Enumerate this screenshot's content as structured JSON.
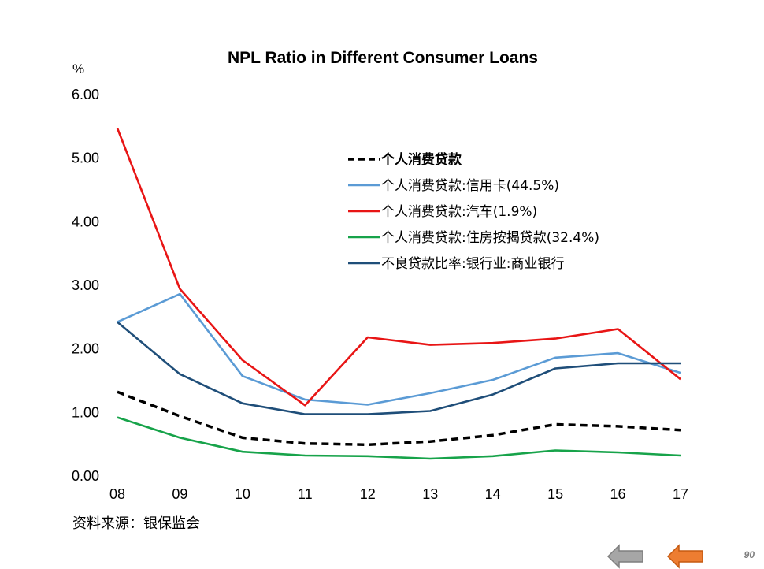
{
  "chart_data": {
    "type": "line",
    "title": "NPL Ratio in Different Consumer Loans",
    "ylabel": "%",
    "ylim": [
      0,
      6
    ],
    "yticks": [
      "0.00",
      "1.00",
      "2.00",
      "3.00",
      "4.00",
      "5.00",
      "6.00"
    ],
    "categories": [
      "08",
      "09",
      "10",
      "11",
      "12",
      "13",
      "14",
      "15",
      "16",
      "17"
    ],
    "grid": false,
    "legend_position": "top-right",
    "series": [
      {
        "name": "个人消费贷款",
        "color": "#000000",
        "dash": true,
        "bold": true,
        "values": [
          1.31,
          0.93,
          0.59,
          0.5,
          0.48,
          0.53,
          0.63,
          0.8,
          0.77,
          0.71
        ]
      },
      {
        "name": "个人消费贷款:信用卡(44.5%)",
        "color": "#5B9BD5",
        "dash": false,
        "bold": false,
        "values": [
          2.41,
          2.85,
          1.56,
          1.19,
          1.11,
          1.29,
          1.5,
          1.85,
          1.92,
          1.61
        ]
      },
      {
        "name": "个人消费贷款:汽车(1.9%)",
        "color": "#E81515",
        "dash": false,
        "bold": false,
        "values": [
          5.46,
          2.93,
          1.81,
          1.1,
          2.17,
          2.05,
          2.08,
          2.15,
          2.3,
          1.51
        ]
      },
      {
        "name": "个人消费贷款:住房按揭贷款(32.4%)",
        "color": "#17A34A",
        "dash": false,
        "bold": false,
        "values": [
          0.91,
          0.59,
          0.37,
          0.31,
          0.3,
          0.26,
          0.3,
          0.39,
          0.36,
          0.31
        ]
      },
      {
        "name": "不良贷款比率:银行业:商业银行",
        "color": "#1F4E79",
        "dash": false,
        "bold": false,
        "values": [
          2.41,
          1.59,
          1.13,
          0.96,
          0.96,
          1.01,
          1.27,
          1.68,
          1.76,
          1.76
        ]
      }
    ]
  },
  "source": "资料来源：银保监会",
  "page_number": "90",
  "nav": {
    "prev_color": "#A6A6A6",
    "next_color": "#ED7D31"
  }
}
